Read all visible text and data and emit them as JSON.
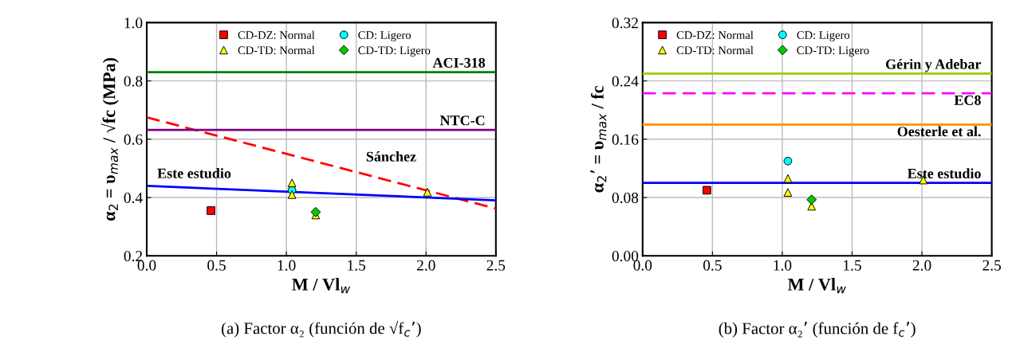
{
  "chart_data": [
    {
      "type": "scatter",
      "xlabel": "M / Vl$_{w}$",
      "ylabel": "α$_{2}$ = υ$_{max}$ / √fc (MPa)",
      "xlim": [
        0,
        2.5
      ],
      "ylim": [
        0.2,
        1.0
      ],
      "xticks": [
        {
          "value": 0,
          "label": "0.0"
        },
        0.5,
        {
          "value": 1,
          "label": "1.0"
        },
        1.5,
        {
          "value": 2,
          "label": "2.0"
        },
        2.5
      ],
      "yticks": [
        0.2,
        0.4,
        0.6,
        0.8,
        {
          "value": 1,
          "label": "1.0"
        }
      ],
      "grid": true,
      "legend": "top",
      "series": [
        {
          "name": "CD-DZ: Normal",
          "color": "#ff0000",
          "marker": "square",
          "x": [
            0.46
          ],
          "values": [
            0.355
          ]
        },
        {
          "name": "CD: Ligero",
          "color": "#00ffff",
          "marker": "circle",
          "x": [
            1.04
          ],
          "values": [
            0.425
          ]
        },
        {
          "name": "CD-TD: Normal",
          "color": "#ffff00",
          "marker": "triangle",
          "x": [
            1.04,
            1.04,
            1.21,
            2.01
          ],
          "values": [
            0.45,
            0.41,
            0.34,
            0.418
          ]
        },
        {
          "name": "CD-TD: Ligero",
          "color": "#00cc00",
          "marker": "diamond",
          "x": [
            1.21
          ],
          "values": [
            0.35
          ]
        },
        {
          "type": "line",
          "name": "Sánchez",
          "color": "#ff0000",
          "line_style": "dashed",
          "x": [
            0,
            2.5
          ],
          "values": [
            0.675,
            0.362
          ]
        },
        {
          "type": "line",
          "name": "Este estudio",
          "color": "#0000ff",
          "line_style": "solid",
          "x": [
            0,
            2.5
          ],
          "values": [
            0.44,
            0.39
          ]
        }
      ],
      "ref_lines": [
        {
          "axis": "y",
          "value": 0.83,
          "label": "ACI-318",
          "color": "#008000",
          "line_style": "solid"
        },
        {
          "axis": "y",
          "value": 0.632,
          "label": "NTC-C",
          "color": "#800080",
          "line_style": "solid"
        }
      ],
      "annotations": [
        "(a) Factor α₂ (función de √f$_{c}$’)"
      ]
    },
    {
      "type": "scatter",
      "xlabel": "M / Vl$_{w}$",
      "ylabel": "α$_{2}$’ = υ$_{max}$ / fc",
      "xlim": [
        0,
        2.5
      ],
      "ylim": [
        0,
        0.32
      ],
      "xticks": [
        {
          "value": 0,
          "label": "0.0"
        },
        0.5,
        {
          "value": 1,
          "label": "1.0"
        },
        1.5,
        {
          "value": 2,
          "label": "2.0"
        },
        2.5
      ],
      "yticks": [
        {
          "value": 0,
          "label": "0.00"
        },
        0.08,
        0.16,
        0.24,
        0.32
      ],
      "grid": true,
      "legend": "top left",
      "series": [
        {
          "name": "CD-DZ: Normal",
          "color": "#ff0000",
          "marker": "square",
          "x": [
            0.46
          ],
          "values": [
            0.09
          ]
        },
        {
          "name": "CD: Ligero",
          "color": "#00ffff",
          "marker": "circle",
          "x": [
            1.04
          ],
          "values": [
            0.13
          ]
        },
        {
          "name": "CD-TD: Normal",
          "color": "#ffff00",
          "marker": "triangle",
          "x": [
            1.04,
            1.04,
            1.21,
            2.01
          ],
          "values": [
            0.106,
            0.087,
            0.068,
            0.104
          ]
        },
        {
          "name": "CD-TD: Ligero",
          "color": "#00cc00",
          "marker": "diamond",
          "x": [
            1.21
          ],
          "values": [
            0.077
          ]
        }
      ],
      "ref_lines": [
        {
          "axis": "y",
          "value": 0.25,
          "label": "Gérin y Adebar",
          "color": "#99cc00",
          "line_style": "solid"
        },
        {
          "axis": "y",
          "value": 0.223,
          "label": "EC8",
          "color": "#ff00ff",
          "line_style": "dashed"
        },
        {
          "axis": "y",
          "value": 0.18,
          "label": "Oesterle et al.",
          "color": "#ff9900",
          "line_style": "solid"
        },
        {
          "axis": "y",
          "value": 0.1,
          "label": "Este estudio",
          "color": "#0000ff",
          "line_style": "solid"
        }
      ],
      "annotations": [
        "(b) Factor α₂’ (función de f$_{c}$’)"
      ]
    }
  ]
}
